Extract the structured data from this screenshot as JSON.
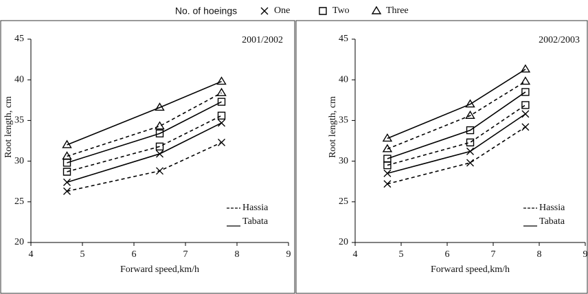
{
  "chart_data": [
    {
      "type": "line",
      "title": "2001/2002",
      "legend_title": "No. of hoeings",
      "x_label": "Forward speed,km/h",
      "y_label": "Root length, cm",
      "xlim": [
        4,
        9
      ],
      "xticks": [
        4,
        5,
        6,
        7,
        8,
        9
      ],
      "ylim": [
        20,
        45
      ],
      "yticks": [
        20,
        25,
        30,
        35,
        40,
        45
      ],
      "color": "#000000",
      "x": [
        4.7,
        6.5,
        7.7
      ],
      "series": [
        {
          "name": "One",
          "variety": "Hassia",
          "marker": "cross",
          "dashed": true,
          "values": [
            26.3,
            28.8,
            32.3
          ]
        },
        {
          "name": "Two",
          "variety": "Hassia",
          "marker": "square",
          "dashed": true,
          "values": [
            28.7,
            31.8,
            35.6
          ]
        },
        {
          "name": "Three",
          "variety": "Hassia",
          "marker": "triangle",
          "dashed": true,
          "values": [
            30.6,
            34.3,
            38.4
          ]
        },
        {
          "name": "One",
          "variety": "Tabata",
          "marker": "cross",
          "dashed": false,
          "values": [
            27.4,
            30.9,
            34.7
          ]
        },
        {
          "name": "Two",
          "variety": "Tabata",
          "marker": "square",
          "dashed": false,
          "values": [
            29.8,
            33.4,
            37.3
          ]
        },
        {
          "name": "Three",
          "variety": "Tabata",
          "marker": "triangle",
          "dashed": false,
          "values": [
            32.0,
            36.6,
            39.8
          ]
        }
      ]
    },
    {
      "type": "line",
      "title": "2002/2003",
      "x_label": "Forward speed,km/h",
      "y_label": "Root length, cm",
      "xlim": [
        4,
        9
      ],
      "xticks": [
        4,
        5,
        6,
        7,
        8,
        9
      ],
      "ylim": [
        20,
        45
      ],
      "yticks": [
        20,
        25,
        30,
        35,
        40,
        45
      ],
      "color": "#000000",
      "x": [
        4.7,
        6.5,
        7.7
      ],
      "series": [
        {
          "name": "One",
          "variety": "Hassia",
          "marker": "cross",
          "dashed": true,
          "values": [
            27.2,
            29.8,
            34.2
          ]
        },
        {
          "name": "Two",
          "variety": "Hassia",
          "marker": "square",
          "dashed": true,
          "values": [
            29.5,
            32.3,
            36.9
          ]
        },
        {
          "name": "Three",
          "variety": "Hassia",
          "marker": "triangle",
          "dashed": true,
          "values": [
            31.5,
            35.6,
            39.8
          ]
        },
        {
          "name": "One",
          "variety": "Tabata",
          "marker": "cross",
          "dashed": false,
          "values": [
            28.5,
            31.2,
            35.8
          ]
        },
        {
          "name": "Two",
          "variety": "Tabata",
          "marker": "square",
          "dashed": false,
          "values": [
            30.3,
            33.8,
            38.5
          ]
        },
        {
          "name": "Three",
          "variety": "Tabata",
          "marker": "triangle",
          "dashed": false,
          "values": [
            32.8,
            37.0,
            41.3
          ]
        }
      ]
    }
  ]
}
